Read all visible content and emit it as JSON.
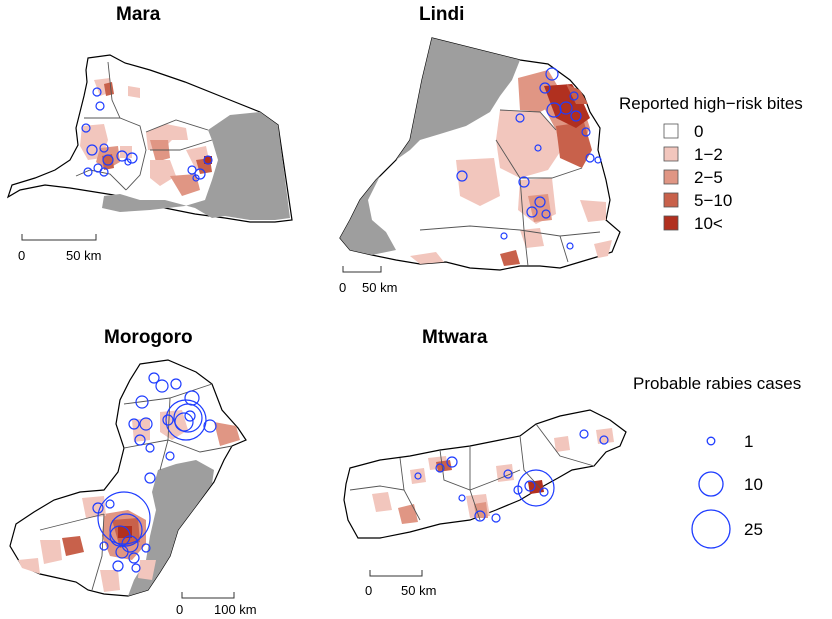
{
  "panels": {
    "mara": {
      "title": "Mara",
      "scale": {
        "zero": "0",
        "label": "50 km"
      }
    },
    "lindi": {
      "title": "Lindi",
      "scale": {
        "zero": "0",
        "label": "50 km"
      }
    },
    "morogoro": {
      "title": "Morogoro",
      "scale": {
        "zero": "0",
        "label": "100 km"
      }
    },
    "mtwara": {
      "title": "Mtwara",
      "scale": {
        "zero": "0",
        "label": "50 km"
      }
    }
  },
  "legend_bites": {
    "title": "Reported high−risk bites",
    "items": [
      {
        "label": "0",
        "color": "#ffffff"
      },
      {
        "label": "1−2",
        "color": "#f2c6bd"
      },
      {
        "label": "2−5",
        "color": "#e09684"
      },
      {
        "label": "5−10",
        "color": "#c8614b"
      },
      {
        "label": "10<",
        "color": "#b1301f"
      }
    ]
  },
  "legend_cases": {
    "title": "Probable rabies cases",
    "items": [
      {
        "label": "1",
        "value": 1
      },
      {
        "label": "10",
        "value": 10
      },
      {
        "label": "25",
        "value": 25
      }
    ]
  },
  "colors": {
    "protected_area": "#9e9e9e",
    "case_circle": "#1e3cff"
  }
}
